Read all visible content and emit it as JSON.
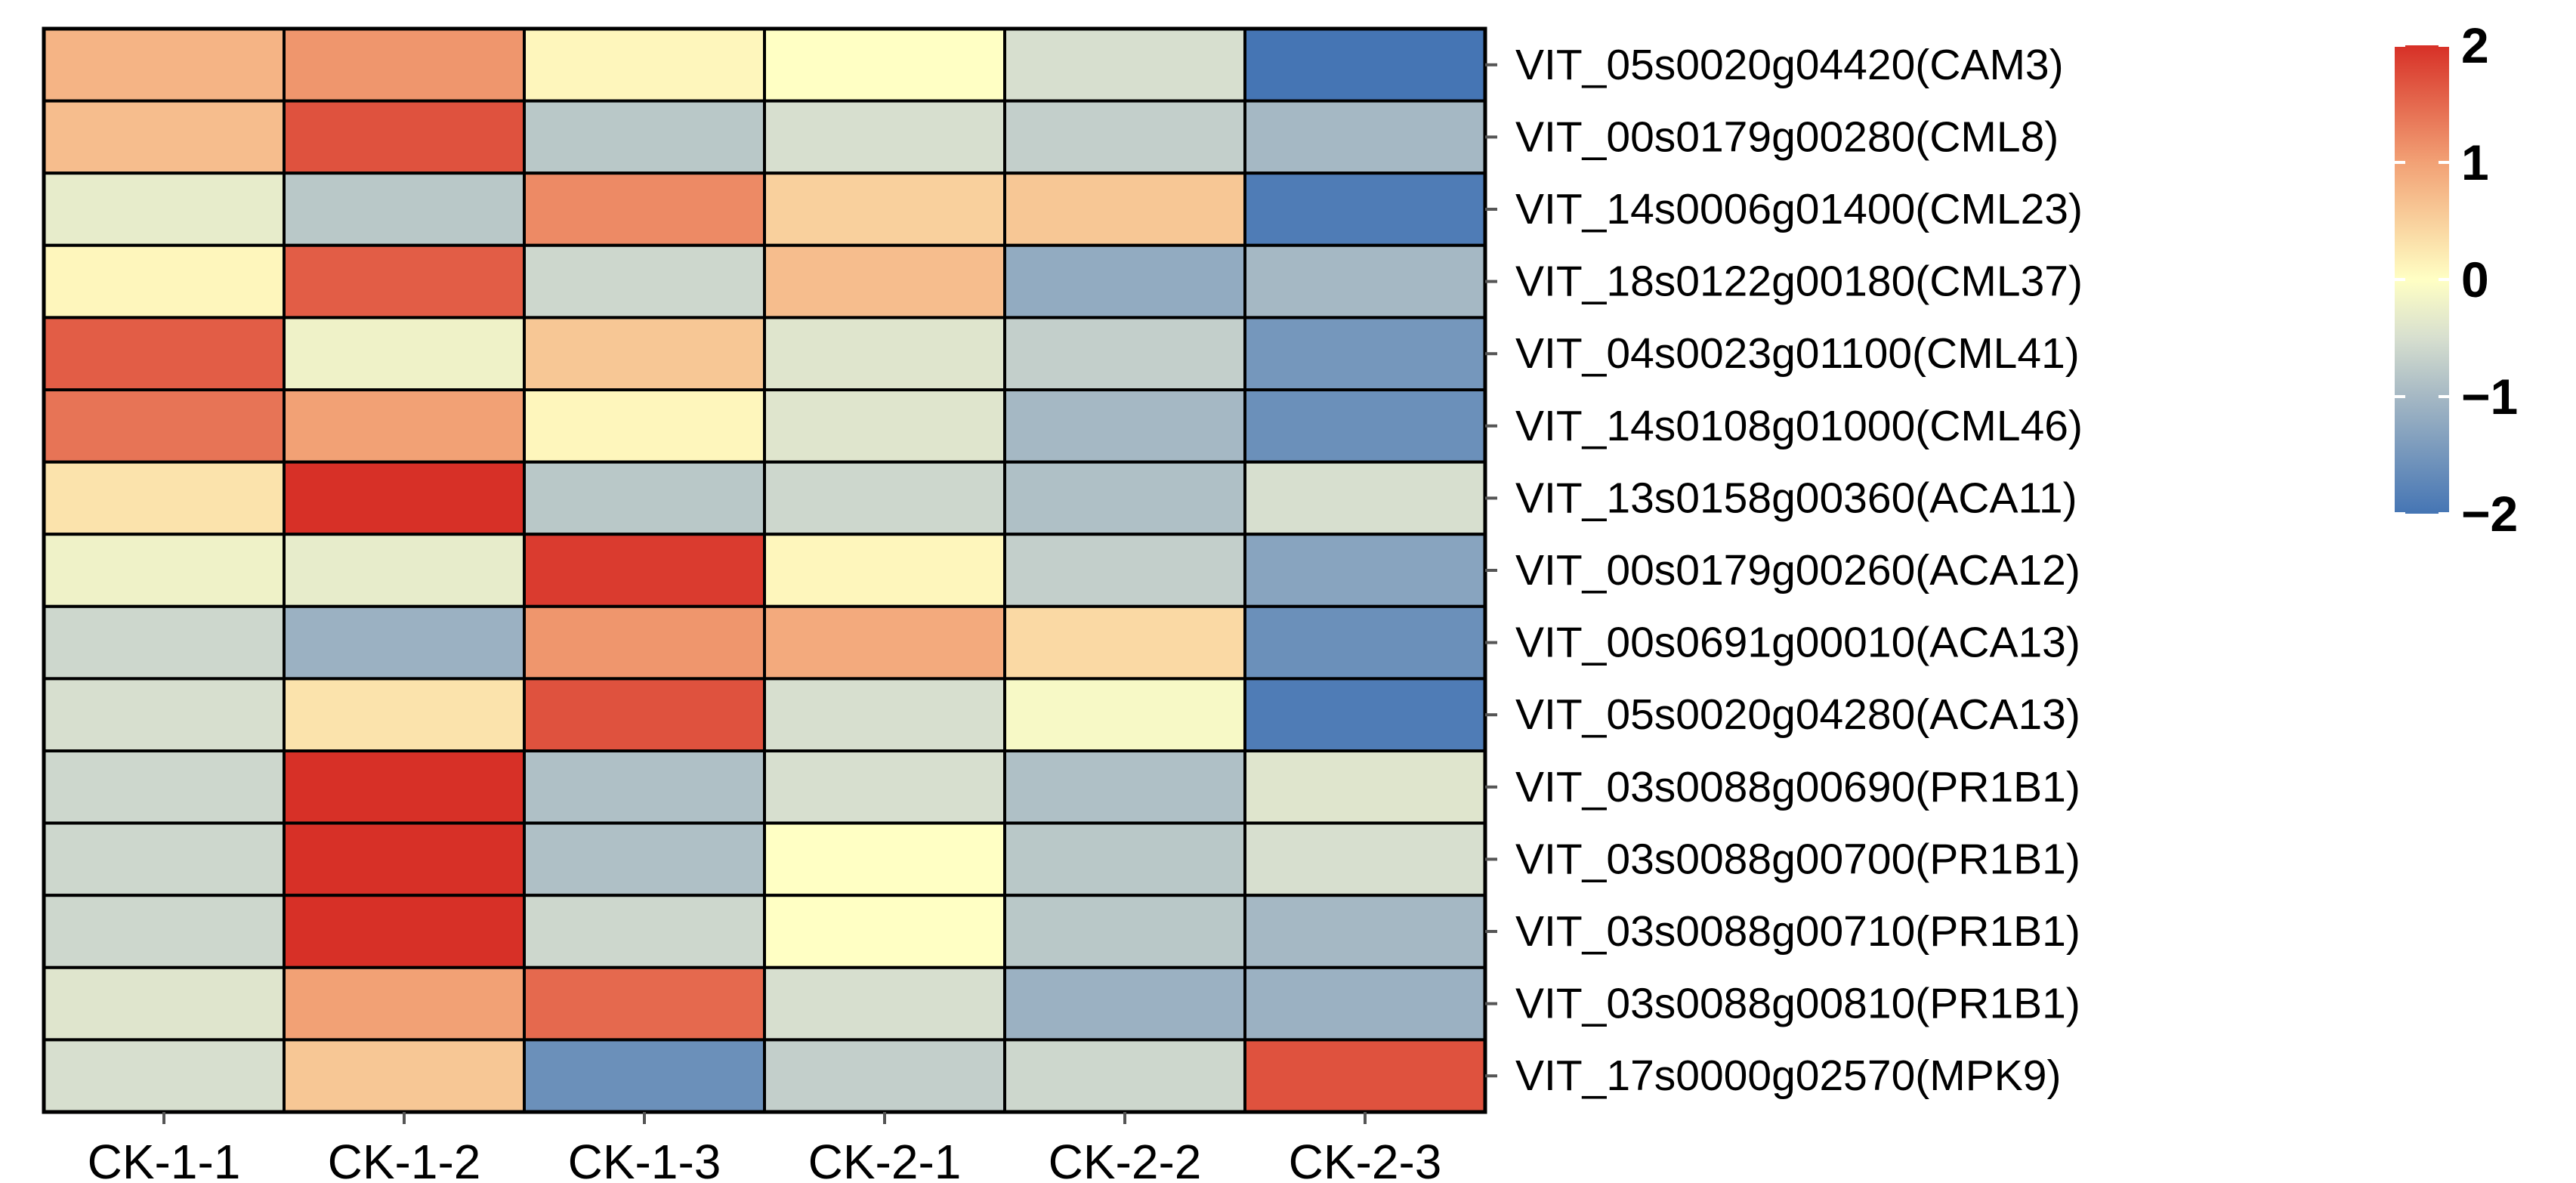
{
  "chart_data": {
    "type": "heatmap",
    "columns": [
      "CK-1-1",
      "CK-1-2",
      "CK-1-3",
      "CK-2-1",
      "CK-2-2",
      "CK-2-3"
    ],
    "rows": [
      "VIT_05s0020g04420(CAM3)",
      "VIT_00s0179g00280(CML8)",
      "VIT_14s0006g01400(CML23)",
      "VIT_18s0122g00180(CML37)",
      "VIT_04s0023g01100(CML41)",
      "VIT_14s0108g01000(CML46)",
      "VIT_13s0158g00360(ACA11)",
      "VIT_00s0179g00260(ACA12)",
      "VIT_00s0691g00010(ACA13)",
      "VIT_05s0020g04280(ACA13)",
      "VIT_03s0088g00690(PR1B1)",
      "VIT_03s0088g00700(PR1B1)",
      "VIT_03s0088g00710(PR1B1)",
      "VIT_03s0088g00810(PR1B1)",
      "VIT_17s0000g02570(MPK9)"
    ],
    "values": [
      [
        0.8,
        1.1,
        0.1,
        0.0,
        -0.5,
        -2.0
      ],
      [
        0.7,
        1.7,
        -0.8,
        -0.5,
        -0.7,
        -1.0
      ],
      [
        -0.3,
        -0.8,
        1.2,
        0.5,
        0.6,
        -1.9
      ],
      [
        0.1,
        1.6,
        -0.6,
        0.7,
        -1.2,
        -1.0
      ],
      [
        1.6,
        -0.2,
        0.6,
        -0.4,
        -0.7,
        -1.5
      ],
      [
        1.4,
        1.0,
        0.1,
        -0.4,
        -1.0,
        -1.6
      ],
      [
        0.3,
        2.0,
        -0.8,
        -0.6,
        -0.9,
        -0.5
      ],
      [
        -0.2,
        -0.3,
        1.9,
        0.1,
        -0.7,
        -1.3
      ],
      [
        -0.6,
        -1.1,
        1.1,
        0.9,
        0.4,
        -1.6
      ],
      [
        -0.5,
        0.3,
        1.7,
        -0.5,
        -0.1,
        -1.9
      ],
      [
        -0.6,
        2.0,
        -0.9,
        -0.5,
        -0.9,
        -0.4
      ],
      [
        -0.6,
        2.0,
        -0.9,
        0.0,
        -0.8,
        -0.5
      ],
      [
        -0.6,
        2.0,
        -0.6,
        0.0,
        -0.8,
        -1.0
      ],
      [
        -0.4,
        1.0,
        1.5,
        -0.5,
        -1.1,
        -1.1
      ],
      [
        -0.5,
        0.6,
        -1.6,
        -0.7,
        -0.6,
        1.7
      ]
    ],
    "color_scale": {
      "min": -2,
      "max": 2,
      "stops": [
        {
          "value": -2,
          "color": "#4575b4"
        },
        {
          "value": -1,
          "color": "#a5b8c4"
        },
        {
          "value": -0.5,
          "color": "#d7dfcf"
        },
        {
          "value": 0,
          "color": "#ffffc4"
        },
        {
          "value": 1,
          "color": "#f2a175"
        },
        {
          "value": 2,
          "color": "#d73027"
        }
      ]
    },
    "legend": {
      "position": "right",
      "ticks": [
        {
          "value": 2,
          "label": "2"
        },
        {
          "value": 1,
          "label": "1"
        },
        {
          "value": 0,
          "label": "0"
        },
        {
          "value": -1,
          "label": "−1"
        },
        {
          "value": -2,
          "label": "−2"
        }
      ]
    },
    "cell_border_color": "#000000"
  }
}
